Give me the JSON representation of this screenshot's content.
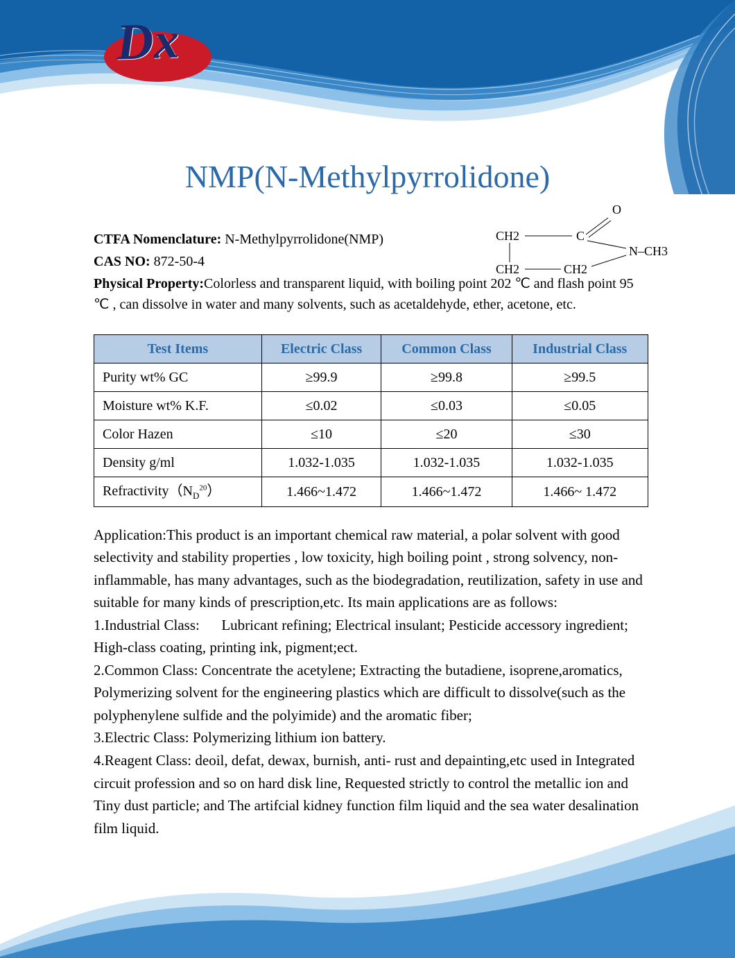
{
  "title": "NMP(N-Methylpyrrolidone)",
  "logo_text": "Dx",
  "colors": {
    "title": "#2b6aa8",
    "table_header_bg": "#b7cde6",
    "table_header_fg": "#2b6aa8",
    "wave_dark": "#1361a6",
    "wave_mid": "#3a87c8",
    "wave_light": "#8cc0e8",
    "wave_pale": "#cde4f5",
    "logo_red": "#cc1b28",
    "logo_navy": "#1a2a6c"
  },
  "meta": {
    "ctfa_label": "CTFA Nomenclature: ",
    "ctfa_value": "N-Methylpyrrolidone(NMP)",
    "cas_label": "CAS NO: ",
    "cas_value": "872-50-4",
    "phys_label": "Physical Property:",
    "phys_value": "Colorless and transparent liquid, with boiling point 202 ℃ and flash point 95 ℃ , can dissolve in water and many solvents, such as acetaldehyde, ether, acetone, etc."
  },
  "chem": {
    "o": "O",
    "ch2a": "CH2",
    "c": "C",
    "ch2b": "CH2",
    "ch2c": "CH2",
    "n_ch3": "N–CH3"
  },
  "table": {
    "headers": [
      "Test Items",
      "Electric Class",
      "Common Class",
      "Industrial Class"
    ],
    "rows": [
      [
        "Purity wt% GC",
        "≥99.9",
        "≥99.8",
        "≥99.5"
      ],
      [
        "Moisture wt% K.F.",
        "≤0.02",
        "≤0.03",
        "≤0.05"
      ],
      [
        "Color Hazen",
        "≤10",
        "≤20",
        "≤30"
      ],
      [
        "Density g/ml",
        "1.032-1.035",
        "1.032-1.035",
        "1.032-1.035"
      ],
      [
        "__refract__",
        "1.466~1.472",
        "1.466~1.472",
        "1.466~ 1.472"
      ]
    ],
    "refract_label_pre": "Refractivity（N",
    "refract_label_sub": "D",
    "refract_label_sup": "20",
    "refract_label_post": "）"
  },
  "application": {
    "intro": "Application:This product is an important chemical raw material, a polar solvent with good selectivity and stability properties , low toxicity, high boiling point , strong solvency, non-inflammable, has many advantages, such as the biodegradation, reutilization, safety in use and suitable for many kinds of prescription,etc. Its main applications are as follows:",
    "item1": "1.Industrial Class:      Lubricant refining; Electrical insulant; Pesticide accessory ingredient; High-class coating, printing ink, pigment;ect.",
    "item2": "2.Common Class: Concentrate the acetylene; Extracting the butadiene, isoprene,aromatics, Polymerizing solvent for the engineering plastics which are difficult to dissolve(such as the polyphenylene sulfide and the polyimide) and the aromatic fiber;",
    "item3": "3.Electric Class: Polymerizing lithium ion battery.",
    "item4": "4.Reagent Class: deoil, defat, dewax, burnish, anti- rust and depainting,etc used in Integrated circuit profession and so on hard disk line, Requested strictly to control the metallic ion and Tiny dust particle; and The artifcial kidney function film liquid and the sea water desalination film liquid."
  }
}
